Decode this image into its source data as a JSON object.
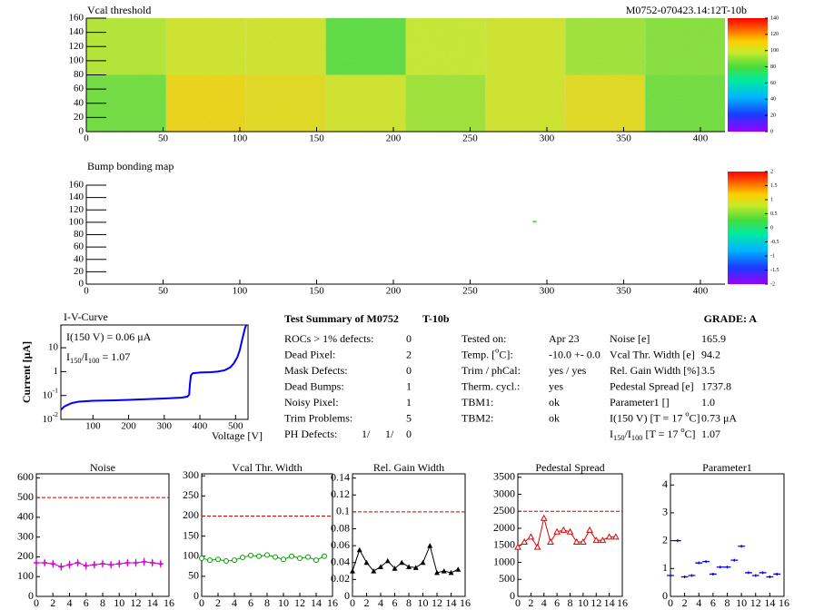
{
  "chart_data": [
    {
      "type": "heatmap",
      "title": "Vcal threshold",
      "subtitle": "M0752-070423.14:12T-10b",
      "xlim": [
        0,
        416
      ],
      "ylim": [
        0,
        160
      ],
      "xticks": [
        0,
        50,
        100,
        150,
        200,
        250,
        300,
        350,
        400
      ],
      "yticks": [
        0,
        20,
        40,
        60,
        80,
        100,
        120,
        140,
        160
      ],
      "zlim": [
        0,
        140
      ],
      "zticks": [
        0,
        20,
        40,
        60,
        80,
        100,
        120,
        140
      ],
      "values": [
        [
          85,
          108,
          105,
          100,
          92,
          100,
          105,
          85
        ],
        [
          95,
          100,
          100,
          82,
          98,
          100,
          92,
          88
        ]
      ]
    },
    {
      "type": "pointmap",
      "title": "Bump bonding map",
      "xlim": [
        0,
        416
      ],
      "ylim": [
        0,
        160
      ],
      "xticks": [
        0,
        50,
        100,
        150,
        200,
        250,
        300,
        350,
        400
      ],
      "yticks": [
        0,
        20,
        40,
        60,
        80,
        100,
        120,
        140,
        160
      ],
      "zlim": [
        -2,
        2
      ],
      "zticks": [
        -2,
        -1.5,
        -1,
        -0.5,
        0,
        0.5,
        1,
        1.5,
        2
      ],
      "points": {
        "x": [
          292
        ],
        "y": [
          101
        ],
        "z": [
          0.3
        ]
      }
    },
    {
      "type": "line",
      "title": "I-V-Curve",
      "x_label": "Voltage [V]",
      "y_label": "Current [μA]",
      "logy": true,
      "xlim": [
        10,
        535
      ],
      "ylim": [
        0.01,
        90
      ],
      "xticks": [
        100,
        200,
        300,
        400,
        500
      ],
      "yticks": [
        {
          "value": 0.01,
          "label": "10",
          "exponent": "-2"
        },
        {
          "value": 0.1,
          "label": "10",
          "exponent": "-1"
        },
        1,
        10
      ],
      "color": "#0000ff",
      "x": [
        0,
        5,
        10,
        20,
        40,
        60,
        100,
        150,
        200,
        250,
        300,
        350,
        365,
        370,
        372,
        375,
        380,
        400,
        430,
        450,
        470,
        485,
        495,
        505,
        512,
        518,
        523,
        527,
        530
      ],
      "values": [
        0.01,
        0.02,
        0.025,
        0.035,
        0.048,
        0.055,
        0.06,
        0.062,
        0.066,
        0.07,
        0.075,
        0.082,
        0.09,
        0.11,
        0.3,
        0.7,
        0.85,
        0.92,
        0.95,
        1.0,
        1.15,
        1.5,
        2.2,
        4,
        8,
        20,
        40,
        70,
        88
      ],
      "annotations": [
        [
          {
            "t": "I(150 V) = 0.06 μA"
          }
        ],
        [
          {
            "t": "I"
          },
          {
            "t": "150",
            "sub": true
          },
          {
            "t": "/I"
          },
          {
            "t": "100",
            "sub": true
          },
          {
            "t": " =  1.07"
          }
        ]
      ]
    },
    {
      "type": "trend",
      "title": "Noise",
      "xlim": [
        0,
        16
      ],
      "ylim": [
        0,
        620
      ],
      "xticks": [
        0,
        2,
        4,
        6,
        8,
        10,
        12,
        14,
        16
      ],
      "yticks": [
        0,
        100,
        200,
        300,
        400,
        500,
        600
      ],
      "limit": 500,
      "color": "#d000d0",
      "marker": "cross",
      "connect": true,
      "x": [
        0,
        1,
        2,
        3,
        4,
        5,
        6,
        7,
        8,
        9,
        10,
        11,
        12,
        13,
        14,
        15
      ],
      "values": [
        170,
        170,
        165,
        150,
        160,
        170,
        155,
        160,
        165,
        160,
        165,
        170,
        170,
        175,
        170,
        165
      ],
      "errors": [
        20,
        20,
        20,
        20,
        20,
        20,
        20,
        20,
        20,
        20,
        20,
        20,
        20,
        20,
        20,
        20
      ]
    },
    {
      "type": "trend",
      "title": "Vcal Thr. Width",
      "xlim": [
        0,
        16
      ],
      "ylim": [
        0,
        305
      ],
      "xticks": [
        0,
        2,
        4,
        6,
        8,
        10,
        12,
        14,
        16
      ],
      "yticks": [
        0,
        50,
        100,
        150,
        200,
        250,
        300
      ],
      "limit": 200,
      "color": "#00a000",
      "marker": "circle",
      "connect": true,
      "x": [
        0,
        1,
        2,
        3,
        4,
        5,
        6,
        7,
        8,
        9,
        10,
        11,
        12,
        13,
        14,
        15
      ],
      "values": [
        95,
        90,
        92,
        88,
        90,
        97,
        102,
        100,
        103,
        98,
        92,
        100,
        95,
        98,
        90,
        100
      ]
    },
    {
      "type": "trend",
      "title": "Rel. Gain Width",
      "xlim": [
        0,
        16
      ],
      "ylim": [
        0,
        0.145
      ],
      "xticks": [
        0,
        2,
        4,
        6,
        8,
        10,
        12,
        14,
        16
      ],
      "yticks": [
        0,
        0.02,
        0.04,
        0.06,
        0.08,
        0.1,
        0.12,
        0.14
      ],
      "limit": 0.1,
      "color": "#000000",
      "marker": "triangle",
      "connect": true,
      "x": [
        0,
        1,
        2,
        3,
        4,
        5,
        6,
        7,
        8,
        9,
        10,
        11,
        12,
        13,
        14,
        15
      ],
      "values": [
        0.03,
        0.055,
        0.04,
        0.03,
        0.035,
        0.042,
        0.033,
        0.04,
        0.035,
        0.034,
        0.04,
        0.06,
        0.028,
        0.03,
        0.028,
        0.032
      ]
    },
    {
      "type": "trend",
      "title": "Pedestal Spread",
      "xlim": [
        0,
        16
      ],
      "ylim": [
        0,
        3600
      ],
      "xticks": [
        0,
        2,
        4,
        6,
        8,
        10,
        12,
        14,
        16
      ],
      "yticks": [
        0,
        500,
        1000,
        1500,
        2000,
        2500,
        3000,
        3500
      ],
      "limit": 2500,
      "color": "#e00000",
      "marker": "open-triangle",
      "connect": true,
      "x": [
        0,
        1,
        2,
        3,
        4,
        5,
        6,
        7,
        8,
        9,
        10,
        11,
        12,
        13,
        14,
        15
      ],
      "values": [
        1450,
        1600,
        1750,
        1450,
        2300,
        1600,
        1900,
        1950,
        1900,
        1600,
        1600,
        1950,
        1650,
        1650,
        1750,
        1750
      ]
    },
    {
      "type": "trend",
      "title": "Parameter1",
      "xlim": [
        0,
        16
      ],
      "ylim": [
        0,
        4.4
      ],
      "xticks": [
        0,
        2,
        4,
        6,
        8,
        10,
        12,
        14,
        16
      ],
      "yticks": [
        0,
        1,
        2,
        3,
        4
      ],
      "color": "#0000e0",
      "marker": "dash",
      "connect": false,
      "x": [
        0,
        1,
        2,
        3,
        4,
        5,
        6,
        7,
        8,
        9,
        10,
        11,
        12,
        13,
        14,
        15
      ],
      "values": [
        0.75,
        2.0,
        0.7,
        0.75,
        1.2,
        1.25,
        0.8,
        1.05,
        1.05,
        1.3,
        1.8,
        0.85,
        0.75,
        0.85,
        0.7,
        0.8
      ]
    }
  ],
  "summary": {
    "title": "Test Summary of M0752",
    "module": "T-10b",
    "grade": "GRADE:  A",
    "left": [
      [
        "ROCs > 1% defects:",
        "0"
      ],
      [
        "Dead Pixel:",
        "2"
      ],
      [
        "Mask Defects:",
        "0"
      ],
      [
        "Dead Bumps:",
        "1"
      ],
      [
        "Noisy Pixel:",
        "1"
      ],
      [
        "Trim Problems:",
        "5"
      ]
    ],
    "ph_defects": {
      "label": "PH Defects:",
      "values": [
        "1/",
        "1/",
        "0"
      ],
      "colors": [
        "#000000",
        "#ff0000",
        "#0000ff"
      ]
    },
    "middle": [
      [
        "Tested on:",
        "Apr 23"
      ],
      [
        [
          {
            "t": "Temp. ["
          },
          {
            "t": "o",
            "sup": true
          },
          {
            "t": "C]:"
          }
        ],
        "-10.0 +- 0.0"
      ],
      [
        "Trim / phCal:",
        "yes / yes"
      ],
      [
        "Therm. cycl.:",
        "yes"
      ],
      [
        "TBM1:",
        "ok"
      ],
      [
        "TBM2:",
        "ok"
      ]
    ],
    "right": [
      [
        "Noise [e]",
        "165.9"
      ],
      [
        "Vcal Thr. Width [e]",
        "94.2"
      ],
      [
        "Rel. Gain Width [%]",
        "3.5"
      ],
      [
        "Pedestal Spread [e]",
        "1737.8"
      ],
      [
        "Parameter1 []",
        "1.0"
      ],
      [
        [
          {
            "t": "I(150 V) [T = 17 "
          },
          {
            "t": "o",
            "sup": true
          },
          {
            "t": "C]"
          }
        ],
        "0.73 μA"
      ],
      [
        [
          {
            "t": "I"
          },
          {
            "t": "150",
            "sub": true
          },
          {
            "t": "/I"
          },
          {
            "t": "100",
            "sub": true
          },
          {
            "t": "  [T = 17 "
          },
          {
            "t": "o",
            "sup": true
          },
          {
            "t": "C]"
          }
        ],
        "1.07"
      ]
    ]
  }
}
